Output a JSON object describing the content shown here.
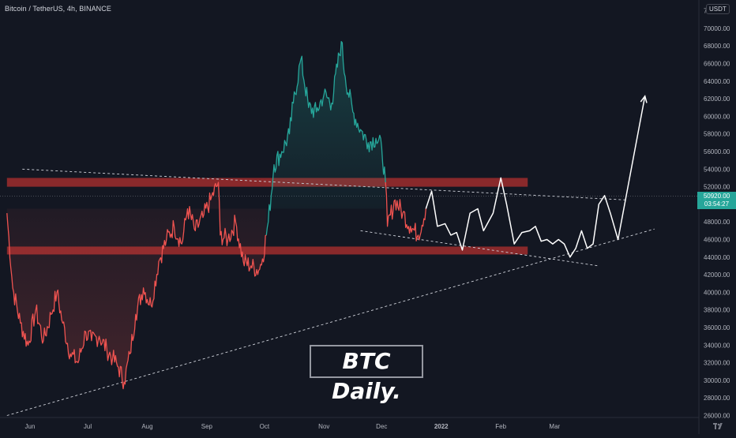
{
  "header": {
    "ticker": "Bitcoin / TetherUS, 4h, BINANCE",
    "currency": "USDT",
    "logo_icon": "tradingview-logo-icon"
  },
  "price_label": {
    "price": "50920.00",
    "countdown": "03:54:27"
  },
  "annotation": {
    "text": "BTC Daily."
  },
  "colors": {
    "up": "#26a69a",
    "down": "#ef5350",
    "zone": "#b2302f",
    "projection": "#ffffff",
    "background": "#131722"
  },
  "chart_data": {
    "type": "line",
    "title": "",
    "xlabel": "",
    "ylabel": "",
    "ylim": [
      26000,
      72000
    ],
    "y_ticks": [
      26000,
      28000,
      30000,
      32000,
      34000,
      36000,
      38000,
      40000,
      42000,
      44000,
      46000,
      48000,
      52000,
      54000,
      56000,
      58000,
      60000,
      62000,
      64000,
      66000,
      68000,
      70000,
      72000
    ],
    "y_tick_labels": [
      "26000.00",
      "28000.00",
      "30000.00",
      "32000.00",
      "34000.00",
      "36000.00",
      "38000.00",
      "40000.00",
      "42000.00",
      "44000.00",
      "46000.00",
      "48000.00",
      "52000.00",
      "54000.00",
      "56000.00",
      "58000.00",
      "60000.00",
      "62000.00",
      "64000.00",
      "66000.00",
      "68000.00",
      "70000.00",
      "72000.00"
    ],
    "x_tick_labels": [
      "Jun",
      "Jul",
      "Aug",
      "Sep",
      "Oct",
      "Nov",
      "Dec",
      "2022",
      "Feb",
      "Mar"
    ],
    "x_tick_dates": [
      "2021-06-01",
      "2021-07-01",
      "2021-08-01",
      "2021-09-01",
      "2021-10-01",
      "2021-11-01",
      "2021-12-01",
      "2022-01-01",
      "2022-02-01",
      "2022-03-01"
    ],
    "series": [
      {
        "kind": "price",
        "points": [
          [
            "2021-05-20",
            49000
          ],
          [
            "2021-05-23",
            40500
          ],
          [
            "2021-05-27",
            36500
          ],
          [
            "2021-05-31",
            34000
          ],
          [
            "2021-06-04",
            38000
          ],
          [
            "2021-06-08",
            34500
          ],
          [
            "2021-06-12",
            37500
          ],
          [
            "2021-06-15",
            40000
          ],
          [
            "2021-06-18",
            36500
          ],
          [
            "2021-06-22",
            33000
          ],
          [
            "2021-06-26",
            32000
          ],
          [
            "2021-06-30",
            35500
          ],
          [
            "2021-07-03",
            34500
          ],
          [
            "2021-07-07",
            35000
          ],
          [
            "2021-07-11",
            33500
          ],
          [
            "2021-07-14",
            32500
          ],
          [
            "2021-07-17",
            31500
          ],
          [
            "2021-07-20",
            29800
          ],
          [
            "2021-07-23",
            33000
          ],
          [
            "2021-07-26",
            37500
          ],
          [
            "2021-07-30",
            40500
          ],
          [
            "2021-08-03",
            38500
          ],
          [
            "2021-08-07",
            43500
          ],
          [
            "2021-08-11",
            46000
          ],
          [
            "2021-08-15",
            47500
          ],
          [
            "2021-08-19",
            45500
          ],
          [
            "2021-08-22",
            49500
          ],
          [
            "2021-08-26",
            47000
          ],
          [
            "2021-08-30",
            48500
          ],
          [
            "2021-09-03",
            50500
          ],
          [
            "2021-09-07",
            52500
          ],
          [
            "2021-09-08",
            46500
          ],
          [
            "2021-09-12",
            46000
          ],
          [
            "2021-09-16",
            48000
          ],
          [
            "2021-09-20",
            43500
          ],
          [
            "2021-09-24",
            43000
          ],
          [
            "2021-09-28",
            42500
          ],
          [
            "2021-09-30",
            43800
          ],
          [
            "2021-10-03",
            48000
          ],
          [
            "2021-10-06",
            54500
          ],
          [
            "2021-10-10",
            56000
          ],
          [
            "2021-10-14",
            58000
          ],
          [
            "2021-10-16",
            61500
          ],
          [
            "2021-10-20",
            66500
          ],
          [
            "2021-10-24",
            61000
          ],
          [
            "2021-10-28",
            60500
          ],
          [
            "2021-11-01",
            62500
          ],
          [
            "2021-11-05",
            61500
          ],
          [
            "2021-11-10",
            68500
          ],
          [
            "2021-11-12",
            64500
          ],
          [
            "2021-11-16",
            60500
          ],
          [
            "2021-11-20",
            58500
          ],
          [
            "2021-11-24",
            57000
          ],
          [
            "2021-11-28",
            57500
          ],
          [
            "2021-12-01",
            56500
          ],
          [
            "2021-12-03",
            52500
          ],
          [
            "2021-12-04",
            47500
          ],
          [
            "2021-12-08",
            50500
          ],
          [
            "2021-12-12",
            49000
          ],
          [
            "2021-12-16",
            47500
          ],
          [
            "2021-12-20",
            46500
          ],
          [
            "2021-12-24",
            49500
          ]
        ]
      },
      {
        "kind": "projection",
        "points": [
          [
            "2021-12-24",
            49500
          ],
          [
            "2021-12-27",
            51500
          ],
          [
            "2021-12-30",
            47500
          ],
          [
            "2022-01-03",
            47800
          ],
          [
            "2022-01-06",
            46500
          ],
          [
            "2022-01-09",
            46800
          ],
          [
            "2022-01-12",
            44800
          ],
          [
            "2022-01-16",
            49000
          ],
          [
            "2022-01-20",
            49500
          ],
          [
            "2022-01-23",
            47000
          ],
          [
            "2022-01-28",
            49000
          ],
          [
            "2022-02-01",
            53000
          ],
          [
            "2022-02-04",
            50000
          ],
          [
            "2022-02-08",
            45500
          ],
          [
            "2022-02-12",
            46800
          ],
          [
            "2022-02-16",
            47000
          ],
          [
            "2022-02-19",
            47500
          ],
          [
            "2022-02-22",
            45800
          ],
          [
            "2022-02-25",
            46000
          ],
          [
            "2022-02-28",
            45500
          ],
          [
            "2022-03-03",
            46000
          ],
          [
            "2022-03-06",
            45500
          ],
          [
            "2022-03-09",
            44000
          ],
          [
            "2022-03-12",
            45000
          ],
          [
            "2022-03-15",
            47000
          ],
          [
            "2022-03-18",
            45000
          ],
          [
            "2022-03-21",
            45500
          ],
          [
            "2022-03-24",
            50000
          ],
          [
            "2022-03-27",
            51000
          ],
          [
            "2022-03-30",
            49000
          ],
          [
            "2022-04-03",
            46000
          ],
          [
            "2022-04-17",
            62300
          ]
        ]
      }
    ],
    "zones": [
      {
        "from": 52000,
        "to": 53000,
        "x_from": "2021-05-20",
        "x_to": "2022-02-15"
      },
      {
        "from": 44300,
        "to": 45200,
        "x_from": "2021-05-20",
        "x_to": "2022-02-15"
      }
    ],
    "trendlines": [
      {
        "name": "upper",
        "points": [
          [
            "2021-05-28",
            54000
          ],
          [
            "2022-04-07",
            50500
          ]
        ]
      },
      {
        "name": "lower-wedge",
        "points": [
          [
            "2021-11-20",
            47000
          ],
          [
            "2022-03-24",
            43000
          ]
        ]
      },
      {
        "name": "rising-support",
        "points": [
          [
            "2021-05-20",
            26000
          ],
          [
            "2022-04-22",
            47200
          ]
        ]
      }
    ],
    "current_price": 50920
  }
}
